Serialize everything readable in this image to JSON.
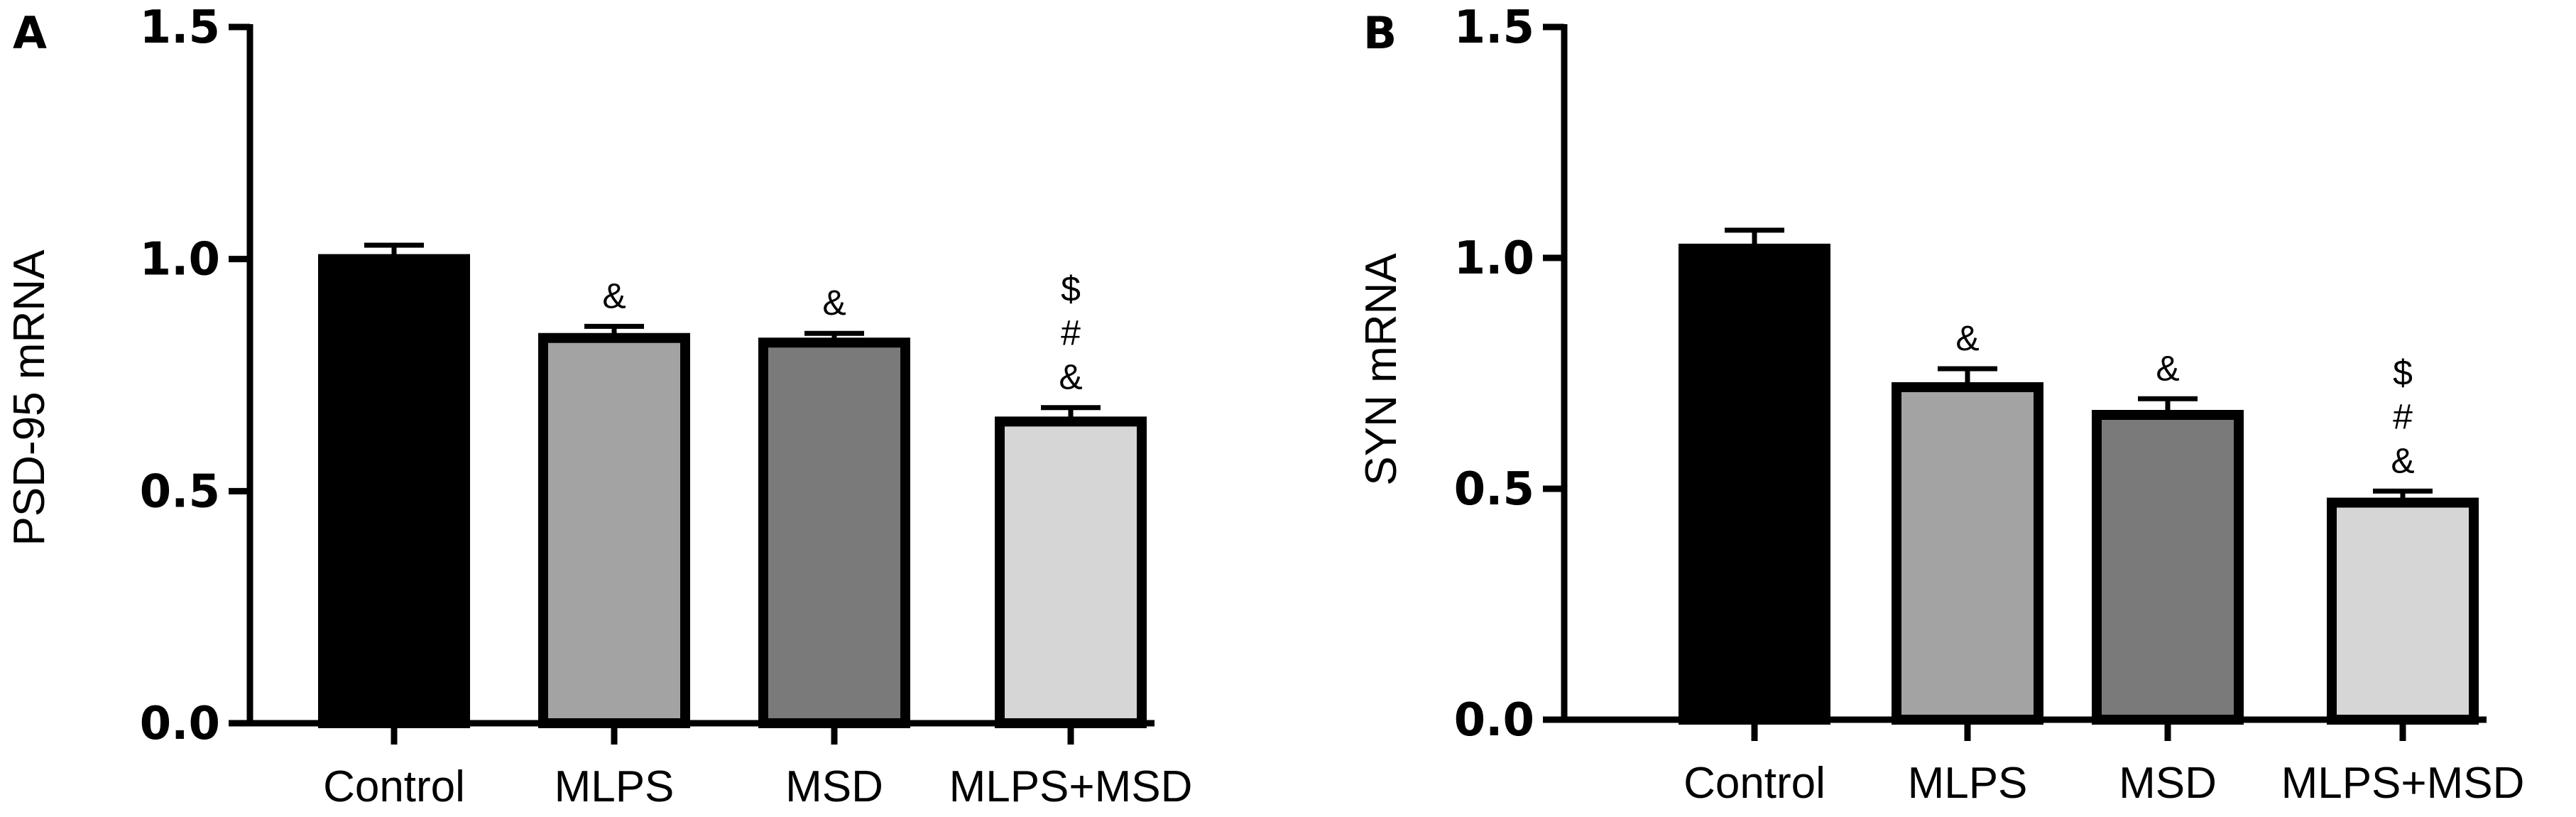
{
  "chart_data": [
    {
      "panel_label": "A",
      "type": "bar",
      "ylabel": "PSD-95 mRNA",
      "xlabel": "",
      "ylim": [
        0,
        1.5
      ],
      "yticks": [
        0.0,
        0.5,
        1.0,
        1.5
      ],
      "ytick_labels": [
        "0.0",
        "0.5",
        "1.0",
        "1.5"
      ],
      "categories": [
        "Control",
        "MLPS",
        "MSD",
        "MLPS+MSD"
      ],
      "values": [
        1.0,
        0.83,
        0.82,
        0.65
      ],
      "errors": [
        0.03,
        0.025,
        0.02,
        0.03
      ],
      "bar_colors": [
        "#000000",
        "#a3a3a3",
        "#7a7a7a",
        "#d6d6d6"
      ],
      "annotations": [
        [],
        [
          "&"
        ],
        [
          "&"
        ],
        [
          "$",
          "#",
          "&"
        ]
      ]
    },
    {
      "panel_label": "B",
      "type": "bar",
      "ylabel": "SYN mRNA",
      "xlabel": "",
      "ylim": [
        0,
        1.5
      ],
      "yticks": [
        0.0,
        0.5,
        1.0,
        1.5
      ],
      "ytick_labels": [
        "0.0",
        "0.5",
        "1.0",
        "1.5"
      ],
      "categories": [
        "Control",
        "MLPS",
        "MSD",
        "MLPS+MSD"
      ],
      "values": [
        1.02,
        0.72,
        0.66,
        0.47
      ],
      "errors": [
        0.04,
        0.04,
        0.035,
        0.025
      ],
      "bar_colors": [
        "#000000",
        "#a3a3a3",
        "#7a7a7a",
        "#d6d6d6"
      ],
      "annotations": [
        [],
        [
          "&"
        ],
        [
          "&"
        ],
        [
          "$",
          "#",
          "&"
        ]
      ]
    }
  ]
}
